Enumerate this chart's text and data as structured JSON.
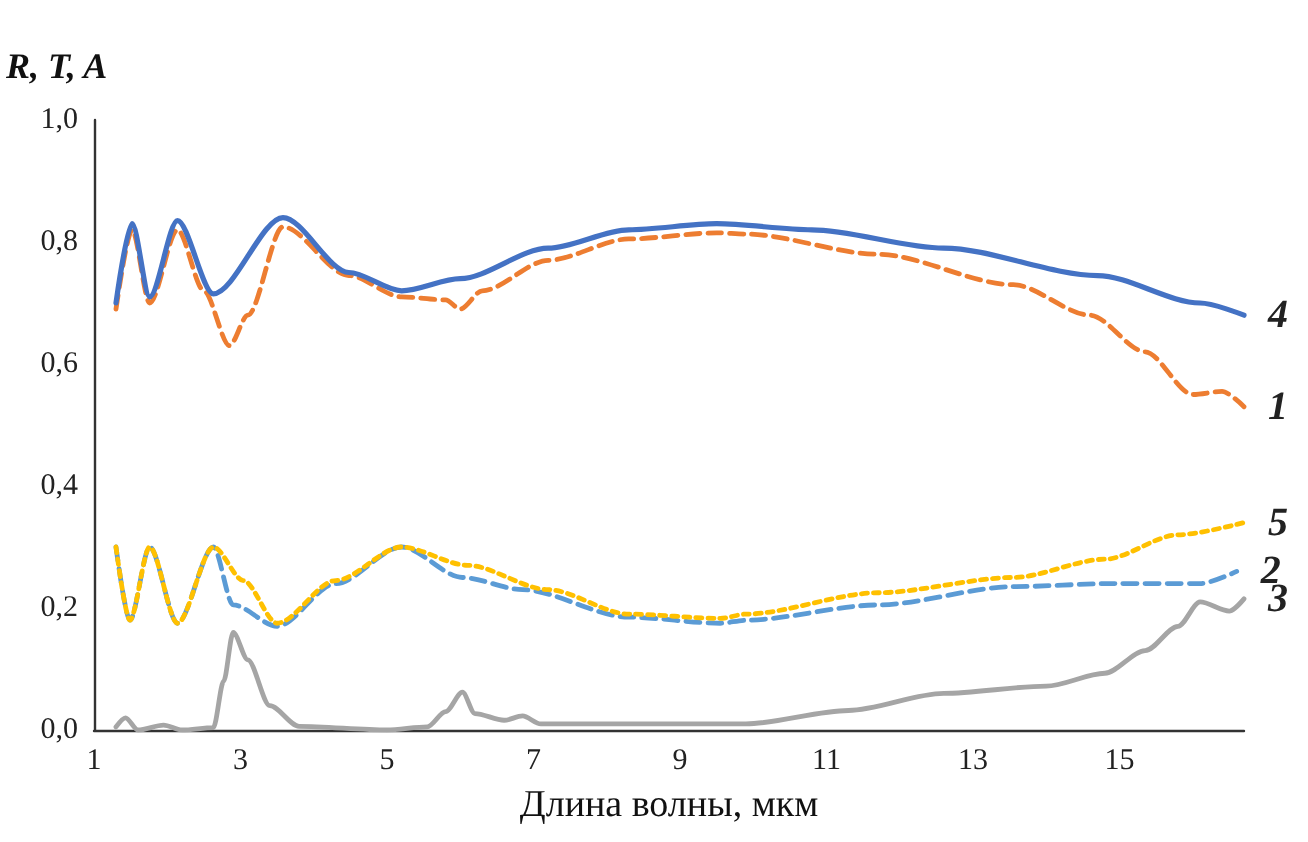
{
  "chart_data": {
    "type": "line",
    "ylabel": "R, T, A",
    "xlabel": "Длина волны, мкм",
    "xlim": [
      1,
      16.7
    ],
    "xticks": [
      1,
      3,
      5,
      7,
      9,
      11,
      13,
      15
    ],
    "ylim": [
      0,
      1
    ],
    "yticks": [
      {
        "value": 0,
        "label": "0,0"
      },
      {
        "value": 0.2,
        "label": "0,2"
      },
      {
        "value": 0.4,
        "label": "0,4"
      },
      {
        "value": 0.6,
        "label": "0,6"
      },
      {
        "value": 0.8,
        "label": "0,8"
      },
      {
        "value": 1,
        "label": "1,0"
      }
    ],
    "grid": false,
    "legend": false,
    "marker": "none",
    "series": [
      {
        "name": "4",
        "color": "#4472c4",
        "line_style": "solid",
        "x": [
          1.3,
          1.52,
          1.76,
          2.14,
          2.63,
          3.58,
          4.48,
          5.2,
          6.0,
          7.2,
          8.3,
          9.5,
          10.8,
          12.6,
          14.7,
          16.1,
          16.7
        ],
        "values": [
          0.7,
          0.83,
          0.71,
          0.835,
          0.715,
          0.84,
          0.75,
          0.72,
          0.74,
          0.79,
          0.82,
          0.83,
          0.82,
          0.79,
          0.745,
          0.7,
          0.68
        ]
      },
      {
        "name": "1",
        "color": "#ed7d31",
        "line_style": "dashed",
        "x": [
          1.3,
          1.52,
          1.76,
          2.14,
          2.5,
          2.85,
          3.1,
          3.58,
          4.48,
          5.2,
          5.8,
          6.0,
          6.3,
          7.2,
          8.3,
          9.5,
          9.9,
          11.7,
          13.55,
          14.6,
          15.35,
          16.0,
          16.4,
          16.7
        ],
        "values": [
          0.69,
          0.82,
          0.7,
          0.82,
          0.72,
          0.63,
          0.68,
          0.825,
          0.745,
          0.71,
          0.705,
          0.69,
          0.72,
          0.77,
          0.805,
          0.815,
          0.813,
          0.78,
          0.73,
          0.68,
          0.62,
          0.55,
          0.555,
          0.53
        ]
      },
      {
        "name": "5",
        "color": "#ffc000",
        "line_style": "dotted",
        "x": [
          1.3,
          1.49,
          1.76,
          2.14,
          2.63,
          3.04,
          3.5,
          4.3,
          5.2,
          6.1,
          7.2,
          8.3,
          9.55,
          9.9,
          11.7,
          13.55,
          14.8,
          15.8,
          16.7
        ],
        "values": [
          0.3,
          0.18,
          0.3,
          0.175,
          0.3,
          0.245,
          0.175,
          0.245,
          0.3,
          0.27,
          0.23,
          0.19,
          0.183,
          0.19,
          0.225,
          0.25,
          0.28,
          0.32,
          0.34
        ]
      },
      {
        "name": "2",
        "color": "#5b9bd5",
        "line_style": "dashed",
        "x": [
          1.3,
          1.49,
          1.76,
          2.14,
          2.63,
          2.9,
          3.5,
          4.3,
          5.2,
          6.03,
          6.85,
          8.3,
          9.55,
          9.9,
          11.7,
          13.55,
          14.9,
          16.1,
          16.6
        ],
        "values": [
          0.3,
          0.18,
          0.3,
          0.175,
          0.3,
          0.205,
          0.17,
          0.24,
          0.3,
          0.25,
          0.23,
          0.185,
          0.175,
          0.18,
          0.205,
          0.235,
          0.24,
          0.24,
          0.26
        ]
      },
      {
        "name": "3",
        "color": "#a5a5a5",
        "line_style": "solid",
        "x": [
          1.3,
          1.43,
          1.6,
          1.95,
          2.2,
          2.63,
          2.77,
          2.9,
          3.1,
          3.4,
          3.8,
          5.0,
          5.55,
          5.8,
          6.03,
          6.2,
          6.6,
          6.85,
          7.1,
          9.5,
          9.9,
          11.3,
          12.6,
          14.0,
          14.8,
          15.35,
          15.8,
          16.1,
          16.5,
          16.7
        ],
        "values": [
          0.005,
          0.02,
          0.0,
          0.008,
          0.0,
          0.004,
          0.08,
          0.16,
          0.115,
          0.04,
          0.006,
          0.0,
          0.005,
          0.03,
          0.062,
          0.027,
          0.016,
          0.023,
          0.01,
          0.01,
          0.01,
          0.032,
          0.06,
          0.072,
          0.093,
          0.13,
          0.17,
          0.21,
          0.195,
          0.215
        ]
      }
    ]
  }
}
